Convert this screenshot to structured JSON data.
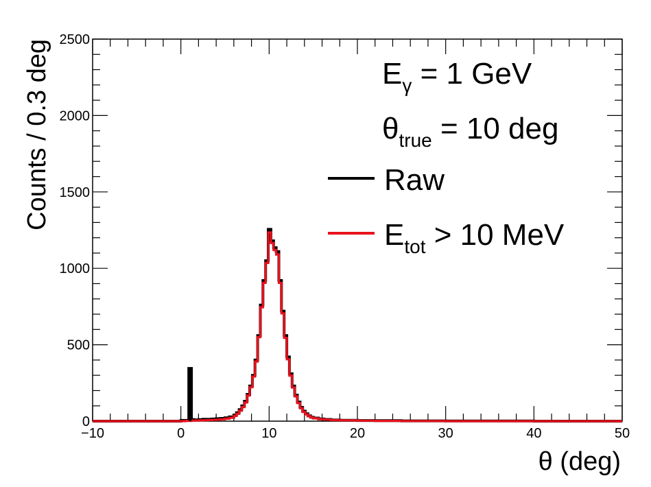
{
  "chart_data": {
    "type": "histogram",
    "xlabel": "θ (deg)",
    "ylabel": "Counts / 0.3 deg",
    "xlim": [
      -10,
      50
    ],
    "ylim": [
      0,
      2500
    ],
    "x_ticks": [
      -10,
      0,
      10,
      20,
      30,
      40,
      50
    ],
    "y_ticks": [
      0,
      500,
      1000,
      1500,
      2000,
      2500
    ],
    "x_tick_labels": [
      "−10",
      "0",
      "10",
      "20",
      "30",
      "40",
      "50"
    ],
    "y_tick_labels": [
      "0",
      "500",
      "1000",
      "1500",
      "2000",
      "2500"
    ],
    "bin_width": 0.3,
    "annotations": [
      {
        "main": "E",
        "sub": "γ",
        "rest": " = 1 GeV"
      },
      {
        "main": "θ",
        "sub": "true",
        "rest": " = 10 deg"
      }
    ],
    "series": [
      {
        "name": "Raw",
        "color": "#000000",
        "bins": [
          [
            -10,
            0
          ],
          [
            0,
            5
          ],
          [
            0.9,
            345
          ],
          [
            1.2,
            10
          ],
          [
            1.5,
            8
          ],
          [
            2.0,
            10
          ],
          [
            2.5,
            12
          ],
          [
            3.0,
            12
          ],
          [
            3.5,
            14
          ],
          [
            4.0,
            16
          ],
          [
            4.5,
            18
          ],
          [
            5.0,
            22
          ],
          [
            5.5,
            28
          ],
          [
            6.0,
            40
          ],
          [
            6.3,
            55
          ],
          [
            6.6,
            75
          ],
          [
            6.9,
            100
          ],
          [
            7.2,
            130
          ],
          [
            7.5,
            175
          ],
          [
            7.8,
            230
          ],
          [
            8.1,
            300
          ],
          [
            8.4,
            400
          ],
          [
            8.7,
            560
          ],
          [
            9.0,
            760
          ],
          [
            9.3,
            920
          ],
          [
            9.6,
            1050
          ],
          [
            9.9,
            1255
          ],
          [
            10.2,
            1180
          ],
          [
            10.5,
            1135
          ],
          [
            10.8,
            1110
          ],
          [
            11.1,
            920
          ],
          [
            11.4,
            720
          ],
          [
            11.7,
            560
          ],
          [
            12.0,
            420
          ],
          [
            12.3,
            310
          ],
          [
            12.6,
            230
          ],
          [
            12.9,
            170
          ],
          [
            13.2,
            125
          ],
          [
            13.5,
            90
          ],
          [
            13.8,
            65
          ],
          [
            14.1,
            48
          ],
          [
            14.4,
            35
          ],
          [
            14.7,
            26
          ],
          [
            15.0,
            20
          ],
          [
            15.6,
            15
          ],
          [
            16.2,
            11
          ],
          [
            17.0,
            8
          ],
          [
            18.0,
            6
          ],
          [
            20.0,
            4
          ],
          [
            22.0,
            3
          ],
          [
            25.0,
            2
          ],
          [
            30.0,
            1
          ],
          [
            40.0,
            0
          ]
        ]
      },
      {
        "name": "E_tot > 10 MeV",
        "color": "#e8121d",
        "bins": [
          [
            -10,
            0
          ],
          [
            0.5,
            2
          ],
          [
            1.2,
            4
          ],
          [
            2.0,
            5
          ],
          [
            2.5,
            6
          ],
          [
            3.0,
            7
          ],
          [
            3.5,
            8
          ],
          [
            4.0,
            10
          ],
          [
            4.5,
            12
          ],
          [
            5.0,
            16
          ],
          [
            5.5,
            22
          ],
          [
            6.0,
            34
          ],
          [
            6.3,
            48
          ],
          [
            6.6,
            68
          ],
          [
            6.9,
            92
          ],
          [
            7.2,
            122
          ],
          [
            7.5,
            168
          ],
          [
            7.8,
            222
          ],
          [
            8.1,
            292
          ],
          [
            8.4,
            390
          ],
          [
            8.7,
            550
          ],
          [
            9.0,
            745
          ],
          [
            9.3,
            905
          ],
          [
            9.6,
            1035
          ],
          [
            9.9,
            1235
          ],
          [
            10.2,
            1165
          ],
          [
            10.5,
            1120
          ],
          [
            10.8,
            1090
          ],
          [
            11.1,
            905
          ],
          [
            11.4,
            705
          ],
          [
            11.7,
            545
          ],
          [
            12.0,
            405
          ],
          [
            12.3,
            298
          ],
          [
            12.6,
            220
          ],
          [
            12.9,
            162
          ],
          [
            13.2,
            118
          ],
          [
            13.5,
            85
          ],
          [
            13.8,
            60
          ],
          [
            14.1,
            44
          ],
          [
            14.4,
            32
          ],
          [
            14.7,
            24
          ],
          [
            15.0,
            18
          ],
          [
            15.6,
            13
          ],
          [
            16.2,
            10
          ],
          [
            17.0,
            7
          ],
          [
            18.0,
            5
          ],
          [
            20.0,
            3
          ],
          [
            22.0,
            2
          ],
          [
            25.0,
            1
          ],
          [
            30.0,
            0
          ]
        ]
      }
    ],
    "legend": {
      "placement": "top-right",
      "entries": [
        {
          "main": "Raw",
          "sub": "",
          "rest": ""
        },
        {
          "main": "E",
          "sub": "tot",
          "rest": " > 10 MeV"
        }
      ]
    }
  }
}
